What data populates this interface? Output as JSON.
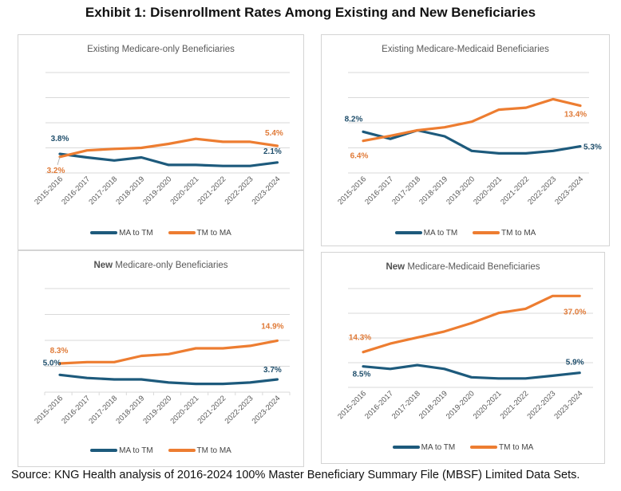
{
  "title": "Exhibit 1: Disenrollment Rates Among Existing and New Beneficiaries",
  "source": "Source: KNG Health analysis of 2016-2024 100% Master Beneficiary Summary File (MBSF) Limited Data Sets.",
  "colors": {
    "ma_to_tm": "#1d5a7c",
    "tm_to_ma": "#ed7d31",
    "ma_label": "#1f4e6b",
    "tm_label": "#e07b39",
    "grid": "#d9d9d9"
  },
  "legend": [
    "MA to TM",
    "TM to MA"
  ],
  "chart_data": [
    {
      "type": "line",
      "title_bold": "",
      "title": "Existing Medicare-only Beneficiaries",
      "categories": [
        "2015-2016",
        "2016-2017",
        "2017-2018",
        "2018-2019",
        "2019-2020",
        "2020-2021",
        "2021-2022",
        "2022-2023",
        "2023-2024"
      ],
      "series": [
        {
          "name": "MA to TM",
          "values": [
            3.8,
            3.1,
            2.5,
            3.1,
            1.6,
            1.6,
            1.4,
            1.4,
            2.1
          ]
        },
        {
          "name": "TM to MA",
          "values": [
            3.2,
            4.5,
            4.8,
            5.0,
            5.8,
            6.8,
            6.2,
            6.2,
            5.4
          ]
        }
      ],
      "data_labels": [
        {
          "series": "MA to TM",
          "index": 0,
          "text": "3.8%"
        },
        {
          "series": "MA to TM",
          "index": 8,
          "text": "2.1%"
        },
        {
          "series": "TM to MA",
          "index": 0,
          "text": "3.2%"
        },
        {
          "series": "TM to MA",
          "index": 8,
          "text": "5.4%"
        }
      ],
      "ylim": [
        0,
        20
      ],
      "grid": true,
      "legend": "bottom"
    },
    {
      "type": "line",
      "title_bold": "",
      "title": "Existing Medicare-Medicaid Beneficiaries",
      "categories": [
        "2015-2016",
        "2016-2017",
        "2017-2018",
        "2018-2019",
        "2019-2020",
        "2020-2021",
        "2021-2022",
        "2022-2023",
        "2023-2024"
      ],
      "series": [
        {
          "name": "MA to TM",
          "values": [
            8.2,
            6.8,
            8.5,
            7.3,
            4.4,
            3.9,
            3.9,
            4.4,
            5.3
          ]
        },
        {
          "name": "TM to MA",
          "values": [
            6.4,
            7.4,
            8.5,
            9.1,
            10.2,
            12.6,
            13.0,
            14.7,
            13.4
          ]
        }
      ],
      "data_labels": [
        {
          "series": "MA to TM",
          "index": 0,
          "text": "8.2%"
        },
        {
          "series": "MA to TM",
          "index": 8,
          "text": "5.3%"
        },
        {
          "series": "TM to MA",
          "index": 0,
          "text": "6.4%"
        },
        {
          "series": "TM to MA",
          "index": 8,
          "text": "13.4%"
        }
      ],
      "ylim": [
        0,
        20
      ],
      "grid": true,
      "legend": "bottom"
    },
    {
      "type": "line",
      "title_bold": "New",
      "title": " Medicare-only Beneficiaries",
      "categories": [
        "2015-2016",
        "2016-2017",
        "2017-2018",
        "2018-2019",
        "2019-2020",
        "2020-2021",
        "2021-2022",
        "2022-2023",
        "2023-2024"
      ],
      "series": [
        {
          "name": "MA to TM",
          "values": [
            5.0,
            4.1,
            3.7,
            3.7,
            2.8,
            2.4,
            2.4,
            2.8,
            3.7
          ]
        },
        {
          "name": "TM to MA",
          "values": [
            8.3,
            8.7,
            8.7,
            10.5,
            11.0,
            12.7,
            12.7,
            13.4,
            14.9
          ]
        }
      ],
      "data_labels": [
        {
          "series": "MA to TM",
          "index": 0,
          "text": "5.0%"
        },
        {
          "series": "MA to TM",
          "index": 8,
          "text": "3.7%"
        },
        {
          "series": "TM to MA",
          "index": 0,
          "text": "8.3%"
        },
        {
          "series": "TM to MA",
          "index": 8,
          "text": "14.9%"
        }
      ],
      "ylim": [
        0,
        30
      ],
      "grid": true,
      "legend": "bottom"
    },
    {
      "type": "line",
      "title_bold": "New",
      "title": " Medicare-Medicaid Beneficiaries",
      "categories": [
        "2015-2016",
        "2016-2017",
        "2017-2018",
        "2018-2019",
        "2019-2020",
        "2020-2021",
        "2021-2022",
        "2022-2023",
        "2023-2024"
      ],
      "series": [
        {
          "name": "MA to TM",
          "values": [
            8.5,
            7.5,
            9.0,
            7.5,
            4.1,
            3.6,
            3.6,
            4.7,
            5.9
          ]
        },
        {
          "name": "TM to MA",
          "values": [
            14.3,
            17.7,
            20.2,
            22.6,
            26.0,
            30.1,
            31.8,
            37.0,
            37.0
          ]
        }
      ],
      "data_labels": [
        {
          "series": "MA to TM",
          "index": 0,
          "text": "8.5%"
        },
        {
          "series": "MA to TM",
          "index": 8,
          "text": "5.9%"
        },
        {
          "series": "TM to MA",
          "index": 0,
          "text": "14.3%"
        },
        {
          "series": "TM to MA",
          "index": 8,
          "text": "37.0%"
        }
      ],
      "ylim": [
        0,
        40
      ],
      "grid": true,
      "legend": "bottom"
    }
  ]
}
